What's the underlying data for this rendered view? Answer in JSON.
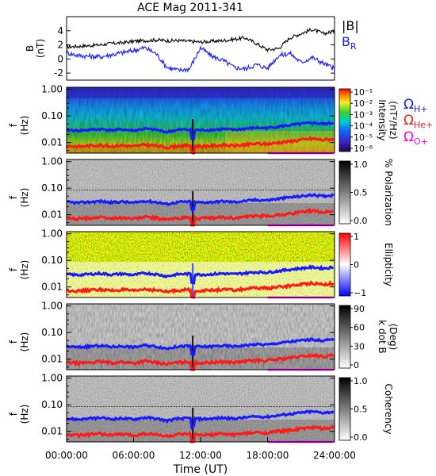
{
  "title": "ACE Mag 2011-341",
  "xaxis": {
    "label": "Time (UT)",
    "ticks": [
      "00:00:00",
      "06:00:00",
      "12:00:00",
      "18:00:00",
      "24:00:00"
    ],
    "range_hours": [
      0,
      24
    ]
  },
  "colors": {
    "B_total": "#000000",
    "B_R": "#1a1aff",
    "H_plus": "#1a1aff",
    "He_plus": "#ff1a1a",
    "O_plus": "#ff00ff"
  },
  "chart_data": [
    {
      "type": "line",
      "panel": "B",
      "ylabel_main": "B",
      "ylabel_unit": "(nT)",
      "ylim": [
        -3,
        6
      ],
      "yticks": [
        "4",
        "2",
        "0",
        "-2"
      ],
      "legend": {
        "total": "|B|",
        "radial": "B",
        "radial_sub": "R"
      },
      "series": [
        {
          "name": "|B|",
          "x": [
            0,
            1,
            2,
            3,
            4,
            5,
            6,
            7,
            8,
            9,
            10,
            11,
            12,
            13,
            14,
            15,
            16,
            17,
            18,
            19,
            20,
            21,
            22,
            23,
            24
          ],
          "values": [
            1.7,
            1.8,
            1.9,
            2.0,
            2.2,
            2.3,
            2.5,
            2.6,
            2.7,
            2.6,
            2.6,
            2.5,
            2.4,
            2.5,
            2.6,
            2.8,
            3.0,
            2.2,
            1.3,
            1.5,
            3.0,
            3.6,
            4.2,
            3.6,
            3.9
          ]
        },
        {
          "name": "B_R",
          "x": [
            0,
            1,
            2,
            3,
            4,
            5,
            6,
            7,
            8,
            9,
            10,
            11,
            12,
            13,
            14,
            15,
            16,
            17,
            18,
            19,
            20,
            21,
            22,
            23,
            24
          ],
          "values": [
            0.9,
            0.5,
            0.4,
            0.3,
            0.6,
            0.9,
            1.2,
            1.6,
            0.8,
            -1.2,
            -1.6,
            -1.4,
            1.6,
            0.4,
            -0.2,
            -1.2,
            -1.4,
            -0.8,
            -1.3,
            0.5,
            0.8,
            -0.5,
            0.2,
            -0.6,
            -1.4
          ]
        }
      ]
    },
    {
      "type": "heatmap",
      "panel": "intensity",
      "ylabel_main": "f",
      "ylabel_unit": "(Hz)",
      "colorbar": {
        "label": "Intensity",
        "unit": "(nT²/Hz)",
        "ticks": [
          "10⁻¹",
          "10⁻²",
          "10⁻³",
          "10⁻⁴",
          "10⁻⁵",
          "10⁻⁶"
        ]
      },
      "gyro_labels": [
        {
          "symbol": "Ω",
          "sub": "H+"
        },
        {
          "symbol": "Ω",
          "sub": "He+"
        },
        {
          "symbol": "Ω",
          "sub": "O+"
        }
      ]
    },
    {
      "type": "heatmap",
      "panel": "polarization",
      "ylabel_main": "f",
      "ylabel_unit": "(Hz)",
      "colorbar": {
        "label": "% Polarization",
        "unit": "",
        "ticks": [
          "1.0",
          "0.5",
          "0.0"
        ]
      }
    },
    {
      "type": "heatmap",
      "panel": "ellipticity",
      "ylabel_main": "f",
      "ylabel_unit": "(Hz)",
      "colorbar": {
        "label": "Ellipticity",
        "unit": "",
        "ticks": [
          "1",
          "0",
          "−1"
        ]
      }
    },
    {
      "type": "heatmap",
      "panel": "kdotb",
      "ylabel_main": "f",
      "ylabel_unit": "(Hz)",
      "colorbar": {
        "label": "k dot B",
        "unit": "(Deg)",
        "ticks": [
          "90",
          "60",
          "30",
          "0"
        ]
      }
    },
    {
      "type": "heatmap",
      "panel": "coherency",
      "ylabel_main": "f",
      "ylabel_unit": "(Hz)",
      "colorbar": {
        "label": "Coherency",
        "unit": "",
        "ticks": [
          "1.0",
          "0.5",
          "0.0"
        ]
      }
    }
  ],
  "freq_axis": {
    "ticks": [
      "1.00",
      "0.10",
      "0.01"
    ],
    "ticks_short": [
      "1.00",
      "0.10",
      "0.01"
    ]
  }
}
